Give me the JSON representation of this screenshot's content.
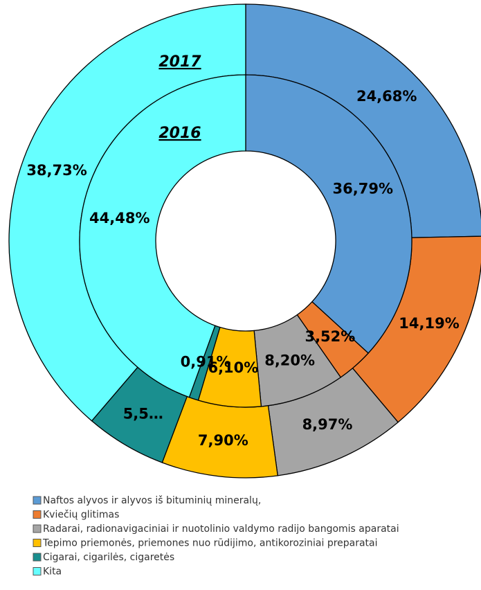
{
  "chart_data": {
    "type": "donut",
    "categories": [
      "Naftos alyvos ir alyvos iš bituminių mineralų,",
      "Kviečių glitimas",
      "Radarai, radionavigaciniai ir nuotolinio valdymo radijo bangomis aparatai",
      "Tepimo priemonės, priemones nuo rūdijimo, antikoroziniai preparatai",
      "Cigarai, cigarilės, cigaretės",
      "Kita"
    ],
    "colors": [
      "#5b9bd5",
      "#ed7d31",
      "#a5a5a5",
      "#ffc000",
      "#1a8f8f",
      "#66ffff"
    ],
    "series": [
      {
        "name": "2017",
        "values": [
          24.68,
          14.19,
          8.97,
          7.9,
          5.53,
          38.73
        ],
        "value_labels": [
          "24,68%",
          "14,19%",
          "8,97%",
          "7,90%",
          "5,5…",
          "38,73%"
        ]
      },
      {
        "name": "2016",
        "values": [
          36.79,
          3.52,
          8.2,
          6.1,
          0.91,
          44.48
        ],
        "value_labels": [
          "36,79%",
          "3,52%",
          "8,20%",
          "6,10%",
          "0,91%",
          "44,48%"
        ]
      }
    ]
  }
}
